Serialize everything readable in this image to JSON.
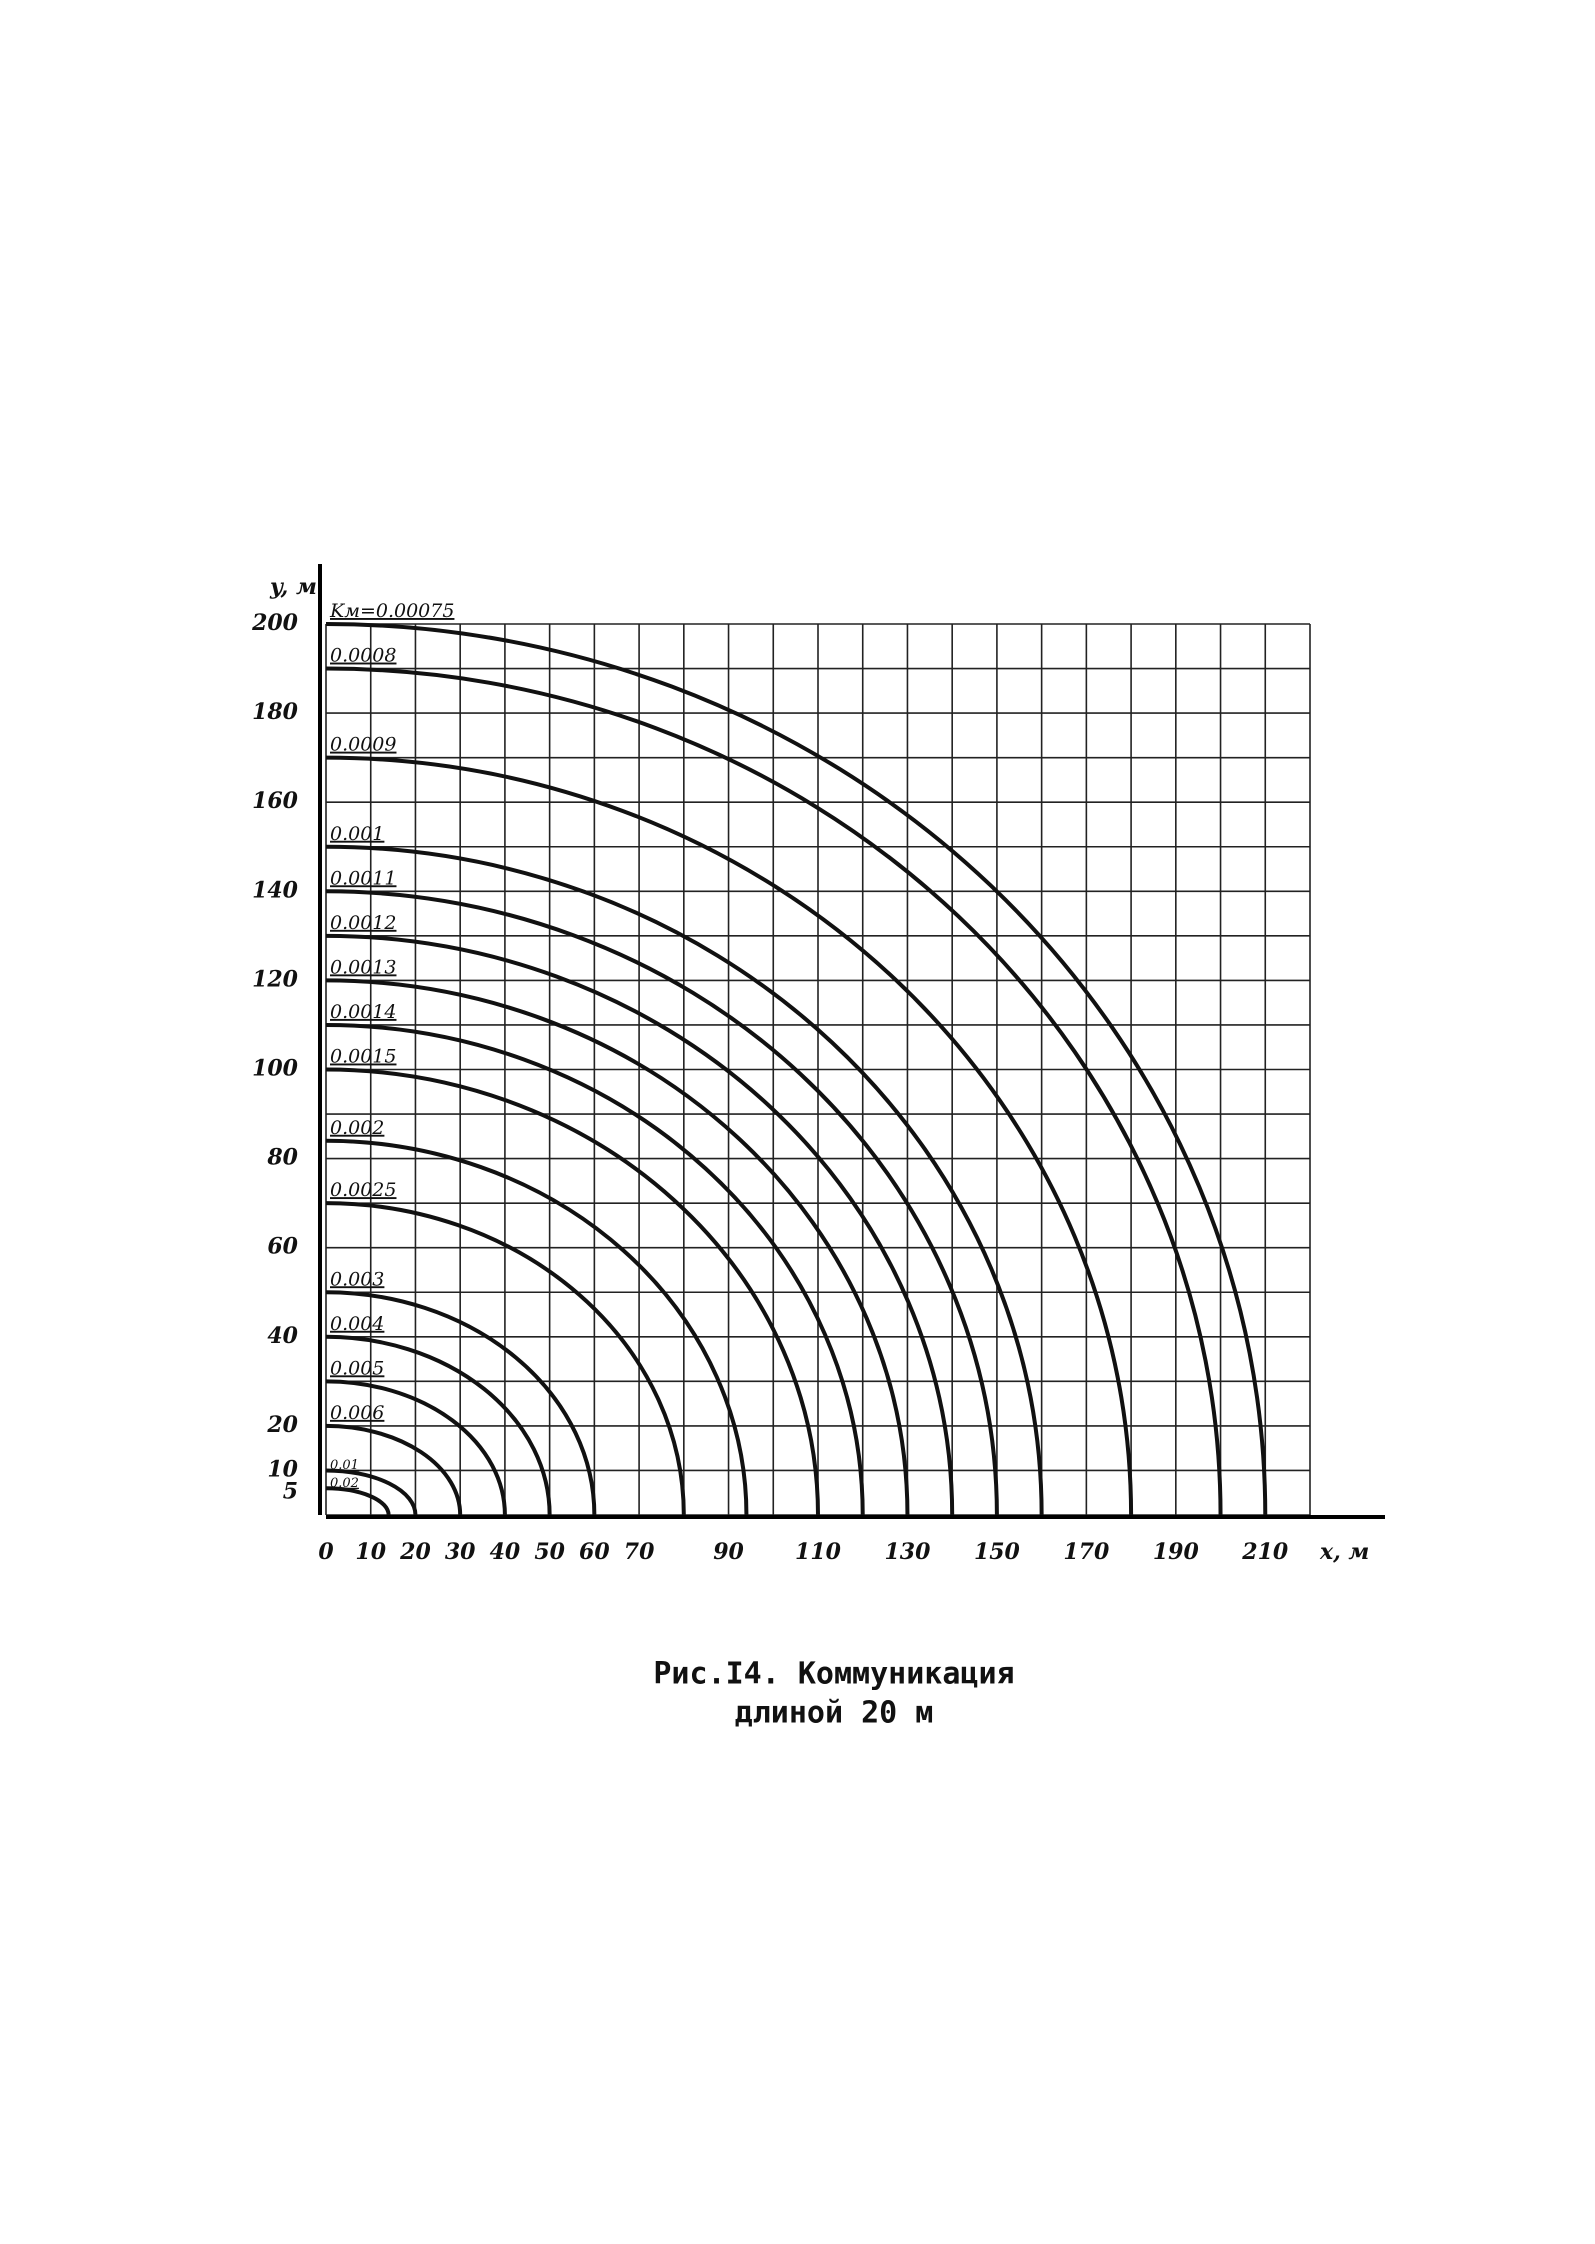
{
  "chart_data": {
    "type": "ellipse-family",
    "x_label": "x, м",
    "y_label": "y, м",
    "caption": [
      "Рис.I4. Коммуникация",
      "длиной 20 м"
    ],
    "xlim": [
      0,
      220
    ],
    "ylim": [
      0,
      200
    ],
    "xticks": [
      0,
      10,
      20,
      30,
      40,
      50,
      60,
      70,
      90,
      110,
      130,
      150,
      170,
      190,
      210
    ],
    "yticks": [
      5,
      10,
      20,
      40,
      60,
      80,
      100,
      120,
      140,
      160,
      180,
      200
    ],
    "grid": true,
    "grid_interval": 10,
    "color": "#111111",
    "series": [
      {
        "name": "Kм=0.00075",
        "y_intercept": 200,
        "x_intercept": 210
      },
      {
        "name": "0.0008",
        "y_intercept": 190,
        "x_intercept": 200
      },
      {
        "name": "0.0009",
        "y_intercept": 170,
        "x_intercept": 180
      },
      {
        "name": "0.001",
        "y_intercept": 150,
        "x_intercept": 160
      },
      {
        "name": "0.0011",
        "y_intercept": 140,
        "x_intercept": 150
      },
      {
        "name": "0.0012",
        "y_intercept": 130,
        "x_intercept": 140
      },
      {
        "name": "0.0013",
        "y_intercept": 120,
        "x_intercept": 130
      },
      {
        "name": "0.0014",
        "y_intercept": 110,
        "x_intercept": 120
      },
      {
        "name": "0.0015",
        "y_intercept": 100,
        "x_intercept": 110
      },
      {
        "name": "0.002",
        "y_intercept": 84,
        "x_intercept": 94
      },
      {
        "name": "0.0025",
        "y_intercept": 70,
        "x_intercept": 80
      },
      {
        "name": "0.003",
        "y_intercept": 50,
        "x_intercept": 60
      },
      {
        "name": "0.004",
        "y_intercept": 40,
        "x_intercept": 50
      },
      {
        "name": "0.005",
        "y_intercept": 30,
        "x_intercept": 40
      },
      {
        "name": "0.006",
        "y_intercept": 20,
        "x_intercept": 30
      },
      {
        "name": "0.01",
        "y_intercept": 10,
        "x_intercept": 20
      },
      {
        "name": "0.02",
        "y_intercept": 6,
        "x_intercept": 14
      }
    ]
  }
}
